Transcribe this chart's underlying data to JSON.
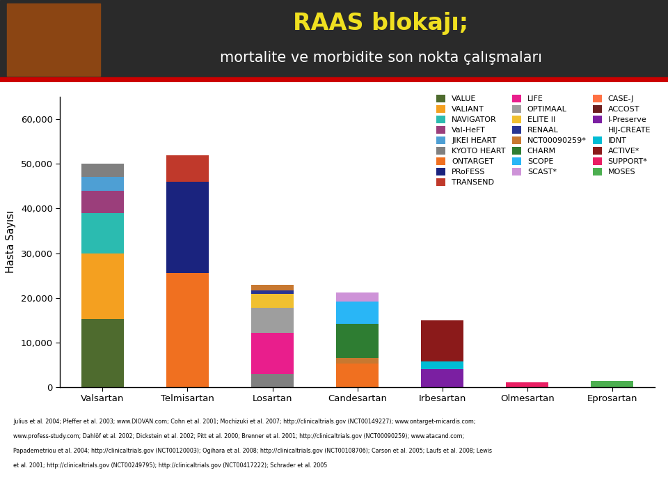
{
  "title_line1": "RAAS blokajı;",
  "title_line2": "mortalite ve morbidite son nokta çalışmaları",
  "ylabel": "Hasta Sayısı",
  "categories": [
    "Valsartan",
    "Telmisartan",
    "Losartan",
    "Candesartan",
    "Irbesartan",
    "Olmesartan",
    "Eprosartan"
  ],
  "ylim": [
    0,
    65000
  ],
  "yticks": [
    0,
    10000,
    20000,
    30000,
    40000,
    50000,
    60000
  ],
  "ytick_labels": [
    "0",
    "10,000",
    "20,000",
    "30,000",
    "40,000",
    "50,000",
    "60,000"
  ],
  "studies": [
    {
      "name": "VALUE",
      "color": "#4e6b2e"
    },
    {
      "name": "VALIANT",
      "color": "#f4a020"
    },
    {
      "name": "NAVIGATOR",
      "color": "#2bbbb0"
    },
    {
      "name": "Val-HeFT",
      "color": "#9b3e7b"
    },
    {
      "name": "JIKEI HEART",
      "color": "#4e9fd4"
    },
    {
      "name": "KYOTO HEART",
      "color": "#808080"
    },
    {
      "name": "ONTARGET",
      "color": "#f07020"
    },
    {
      "name": "PRoFESS",
      "color": "#1a237e"
    },
    {
      "name": "TRANSEND",
      "color": "#c0392b"
    },
    {
      "name": "LIFE",
      "color": "#e91e8c"
    },
    {
      "name": "OPTIMAAL",
      "color": "#9e9e9e"
    },
    {
      "name": "ELITE II",
      "color": "#f0c030"
    },
    {
      "name": "RENAAL",
      "color": "#283593"
    },
    {
      "name": "NCT00090259*",
      "color": "#c87830"
    },
    {
      "name": "CHARM",
      "color": "#2e7d32"
    },
    {
      "name": "SCOPE",
      "color": "#29b6f6"
    },
    {
      "name": "SCAST*",
      "color": "#ce93d8"
    },
    {
      "name": "CASE-J",
      "color": "#ff7043"
    },
    {
      "name": "ACCOST",
      "color": "#6d1f1f"
    },
    {
      "name": "I-Preserve",
      "color": "#7b1fa2"
    },
    {
      "name": "HIJ-CREATE",
      "color": null
    },
    {
      "name": "IDNT",
      "color": "#00bcd4"
    },
    {
      "name": "ACTIVE*",
      "color": "#8b1a1a"
    },
    {
      "name": "SUPPORT*",
      "color": "#e91e63"
    },
    {
      "name": "MOSES",
      "color": "#4caf50"
    }
  ],
  "bars": {
    "Valsartan": {
      "VALUE": 15245,
      "VALIANT": 14703,
      "NAVIGATOR": 9000,
      "Val-HeFT": 5010,
      "JIKEI HEART": 3081,
      "KYOTO HEART": 3031
    },
    "Telmisartan": {
      "ONTARGET": 25620,
      "PRoFESS": 20332,
      "TRANSEND": 5926
    },
    "Losartan": {
      "LIFE": 9193,
      "KYOTO HEART": 3031,
      "OPTIMAAL": 5477,
      "ELITE II": 3152,
      "RENAAL": 751,
      "NCT00090259*": 1250
    },
    "Candesartan": {
      "CHARM": 7599,
      "SCOPE": 4964,
      "SCAST*": 2029,
      "ONTARGET": 5302,
      "NCT00090259*": 1250
    },
    "Irbesartan": {
      "I-Preserve": 4128,
      "IDNT": 1715,
      "ACTIVE*": 9144
    },
    "Olmesartan": {
      "SUPPORT*": 1147
    },
    "Eprosartan": {
      "MOSES": 1405
    }
  },
  "footnote_line1": "Julius et al. 2004; Pfeffer et al. 2003; www.DIOVAN.com; Cohn et al. 2001; Mochizuki et al. 2007; http://clinicaltrials.gov (NCT00149227); www.ontarget-micardis.com;",
  "footnote_line2": "www.profess-study.com; Dahlöf et al. 2002; Dickstein et al. 2002; Pitt et al. 2000; Brenner et al. 2001; http://clinicaltrials.gov (NCT00090259); www.atacand.com;",
  "footnote_line3": "Papademetriou et al. 2004; http://clinicaltrials.gov (NCT00120003); Ogihara et al. 2008; http://clinicaltrials.gov (NCT00108706); Carson et al. 2005; Laufs et al. 2008; Lewis",
  "footnote_line4": "et al. 2001; http://clinicaltrials.gov (NCT00249795); http://clinicaltrials.gov (NCT00417222); Schrader et al. 2005",
  "header_bg_dark": "#2a2a2a",
  "header_title_color": "#f0e020",
  "header_subtitle_color": "#ffffff",
  "background_color": "#ffffff",
  "red_bar_color": "#cc0000",
  "chart_bg": "#ffffff"
}
